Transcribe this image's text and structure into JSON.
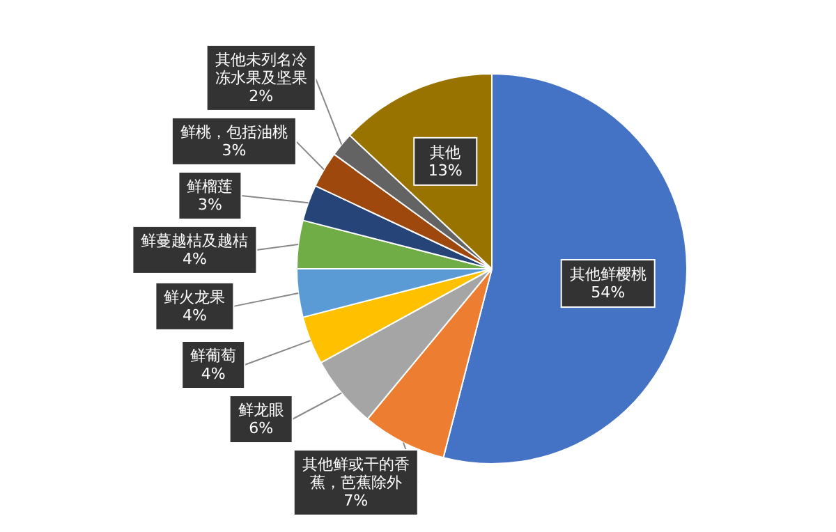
{
  "chart_data": {
    "type": "pie",
    "categories": [
      "其他鲜樱桃",
      "其他鲜或干的香蕉，芭蕉除外",
      "鲜龙眼",
      "鲜葡萄",
      "鲜火龙果",
      "鲜蔓越桔及越桔",
      "鲜榴莲",
      "鲜桃，包括油桃",
      "其他未列名冷冻水果及坚果",
      "其他"
    ],
    "values": [
      54,
      7,
      6,
      4,
      4,
      4,
      3,
      3,
      2,
      13
    ],
    "colors": [
      "#4472c4",
      "#ed7d31",
      "#a5a5a5",
      "#ffc000",
      "#5b9bd5",
      "#70ad47",
      "#264478",
      "#9e480e",
      "#636363",
      "#997300"
    ],
    "value_labels": [
      "54%",
      "7%",
      "6%",
      "4%",
      "4%",
      "4%",
      "3%",
      "3%",
      "2%",
      "13%"
    ],
    "legend": false
  }
}
